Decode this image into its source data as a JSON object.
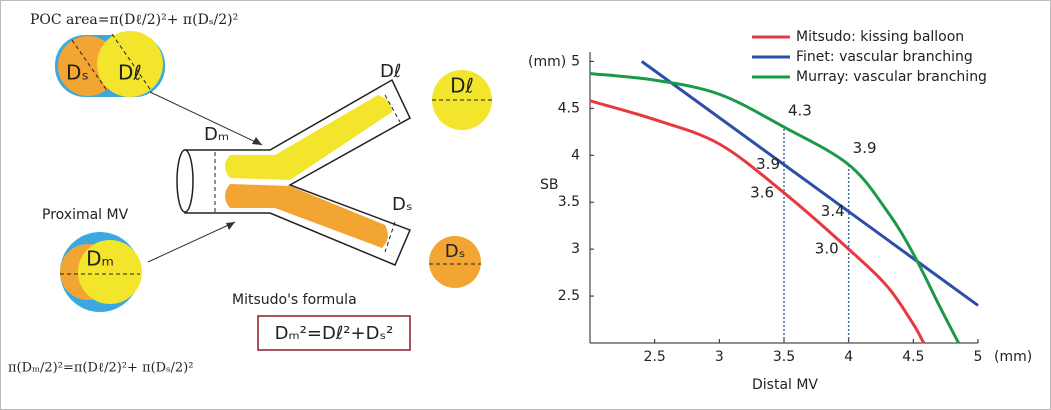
{
  "diagram": {
    "poc_formula": "POC area=π(Dℓ/2)²+ π(Dₛ/2)²",
    "top_small_label": "Dₛ",
    "top_large_label": "Dℓ",
    "side_large_label": "Dℓ",
    "branch_main_label": "Dₘ",
    "branch_large_label": "Dℓ",
    "branch_small_label": "Dₛ",
    "proximal_title": "Proximal MV",
    "proximal_label": "Dₘ",
    "side_small_label": "Dₛ",
    "formula_title": "Mitsudo's formula",
    "formula_box": "Dₘ²=Dℓ²+Dₛ²",
    "area_formula": "π(Dₘ/2)²=π(Dℓ/2)²+ π(Dₛ/2)²"
  },
  "chart_data": {
    "type": "line",
    "x_label": "Distal MV",
    "y_label": "SB",
    "x_unit": "(mm)",
    "y_unit": "(mm)",
    "xlim": [
      2,
      5
    ],
    "ylim": [
      2,
      5.1
    ],
    "xticks": [
      2.5,
      3,
      3.5,
      4,
      4.5,
      5
    ],
    "yticks": [
      2.5,
      3,
      3.5,
      4,
      4.5,
      5
    ],
    "reference_x": [
      3.5,
      4
    ],
    "series": [
      {
        "name": "Mitsudo: kissing balloon",
        "color": "#e8383d",
        "x": [
          2,
          2.5,
          3,
          3.5,
          4,
          4.3,
          4.5,
          4.58
        ],
        "values": [
          4.58,
          4.38,
          4.12,
          3.6,
          3.0,
          2.6,
          2.2,
          2.0
        ],
        "value_labels": [
          null,
          null,
          null,
          "3.6",
          "3.0",
          null,
          null,
          null
        ]
      },
      {
        "name": "Finet: vascular branching",
        "color": "#2b4fa8",
        "x": [
          2.4,
          3.5,
          4,
          5
        ],
        "values": [
          5.0,
          3.9,
          3.4,
          2.4
        ],
        "value_labels": [
          null,
          "3.9",
          "3.4",
          null
        ]
      },
      {
        "name": "Murray: vascular branching",
        "color": "#1a9a48",
        "x": [
          2,
          2.5,
          3,
          3.5,
          4,
          4.3,
          4.5,
          4.7,
          4.85
        ],
        "values": [
          4.87,
          4.8,
          4.65,
          4.3,
          3.9,
          3.4,
          2.95,
          2.4,
          2.0
        ],
        "value_labels": [
          null,
          null,
          null,
          "4.3",
          "3.9",
          null,
          null,
          null,
          null
        ]
      }
    ]
  }
}
